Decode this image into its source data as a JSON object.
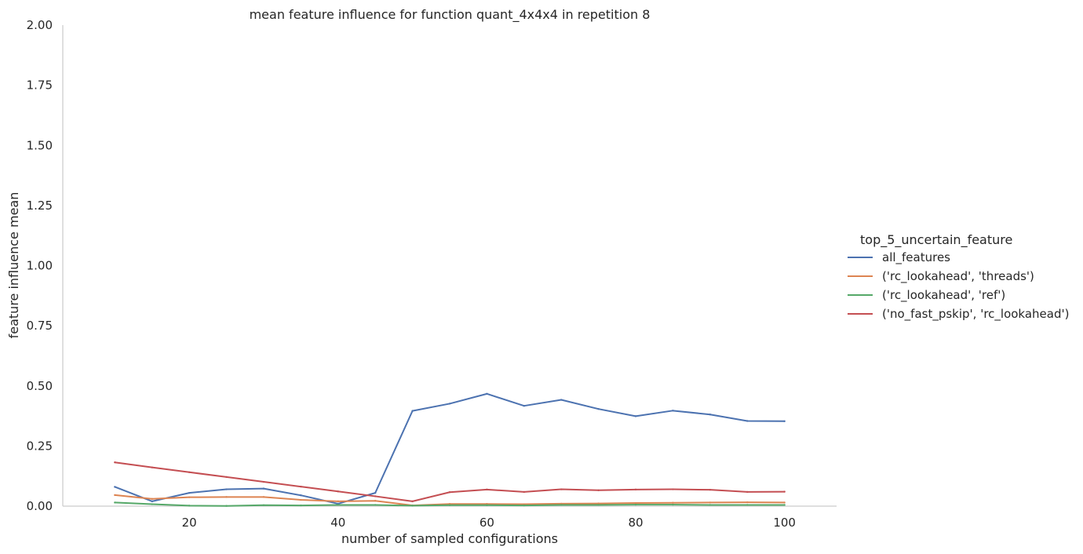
{
  "chart_data": {
    "type": "line",
    "title": "mean feature influence for function quant_4x4x4 in repetition 8",
    "xlabel": "number of sampled configurations",
    "ylabel": "feature influence mean",
    "xlim": [
      3,
      107
    ],
    "ylim": [
      0,
      2.0
    ],
    "xticks": [
      20,
      40,
      60,
      80,
      100
    ],
    "xtick_labels": [
      "20",
      "40",
      "60",
      "80",
      "100"
    ],
    "yticks": [
      0,
      0.25,
      0.5,
      0.75,
      1.0,
      1.25,
      1.5,
      1.75,
      2.0
    ],
    "ytick_labels": [
      "0.00",
      "0.25",
      "0.50",
      "0.75",
      "1.00",
      "1.25",
      "1.50",
      "1.75",
      "2.00"
    ],
    "grid": false,
    "legend": {
      "title": "top_5_uncertain_feature",
      "placement": "right"
    },
    "x": [
      10,
      15,
      20,
      25,
      30,
      35,
      40,
      45,
      50,
      55,
      60,
      65,
      70,
      75,
      80,
      85,
      90,
      95,
      100
    ],
    "series": [
      {
        "name": "all_features",
        "color": "#4c72b0",
        "values": [
          0.08,
          0.02,
          0.055,
          0.07,
          0.073,
          0.045,
          0.01,
          0.055,
          0.396,
          0.426,
          0.467,
          0.417,
          0.442,
          0.404,
          0.374,
          0.397,
          0.381,
          0.354,
          0.353
        ]
      },
      {
        "name": "('rc_lookahead', 'threads')",
        "color": "#dd8452",
        "values": [
          0.046,
          0.03,
          0.037,
          0.038,
          0.038,
          0.026,
          0.02,
          0.022,
          0.003,
          0.009,
          0.009,
          0.008,
          0.01,
          0.011,
          0.013,
          0.014,
          0.015,
          0.016,
          0.015
        ]
      },
      {
        "name": "('rc_lookahead', 'ref')",
        "color": "#55a868",
        "values": [
          0.015,
          0.008,
          0.002,
          0.001,
          0.004,
          0.003,
          0.005,
          0.005,
          0.002,
          0.004,
          0.004,
          0.003,
          0.005,
          0.005,
          0.006,
          0.006,
          0.005,
          0.005,
          0.005
        ]
      },
      {
        "name": "('no_fast_pskip', 'rc_lookahead')",
        "color": "#c44e52",
        "values": [
          0.182,
          0.161,
          0.141,
          0.121,
          0.101,
          0.081,
          0.061,
          0.041,
          0.02,
          0.058,
          0.069,
          0.059,
          0.07,
          0.066,
          0.069,
          0.07,
          0.068,
          0.059,
          0.06
        ]
      }
    ]
  }
}
